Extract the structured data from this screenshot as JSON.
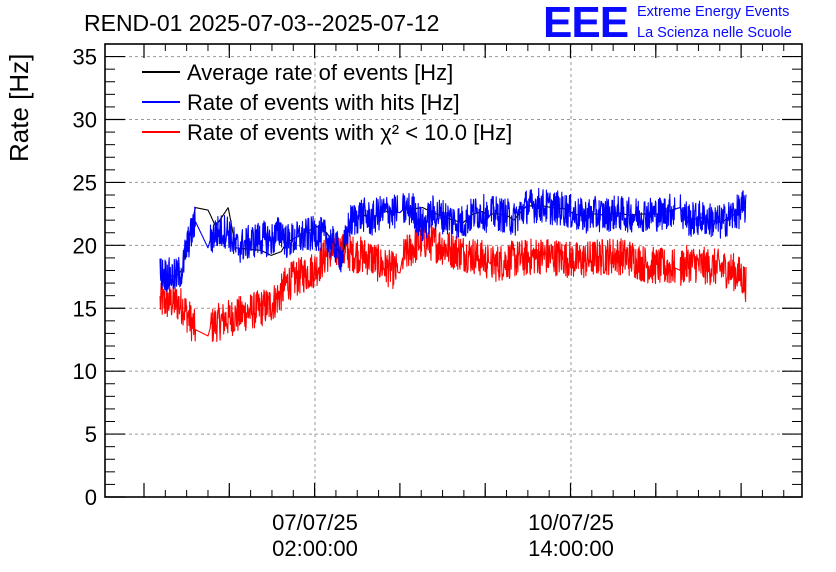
{
  "chart_data": {
    "type": "line",
    "title": "REND-01 2025-07-03--2025-07-12",
    "ylabel": "Rate [Hz]",
    "xlabel": "",
    "ylim": [
      0,
      36
    ],
    "grid": true,
    "legend_position": "top-left",
    "yticks": [
      "0",
      "5",
      "10",
      "15",
      "20",
      "25",
      "30",
      "35"
    ],
    "xtick_labels": [
      {
        "date": "07/07/25",
        "time": "02:00:00"
      },
      {
        "date": "10/07/25",
        "time": "14:00:00"
      }
    ],
    "x_hours": [
      0,
      6,
      8.5,
      9,
      10,
      14,
      19,
      20,
      22,
      27,
      30,
      40,
      44,
      48,
      50,
      62,
      66,
      70,
      72,
      75,
      80,
      84,
      86,
      90,
      95,
      96,
      100,
      104,
      108,
      112,
      116,
      120,
      124,
      128,
      130,
      131,
      134,
      138,
      140,
      145,
      150,
      155,
      160,
      164,
      168,
      172,
      176,
      180,
      186,
      192,
      198,
      204,
      206,
      207,
      210,
      214,
      218,
      222,
      226,
      230,
      231,
      232
    ],
    "series": [
      {
        "name": "Average rate of events [Hz]",
        "color": "#000000",
        "values": [
          17.8,
          17.5,
          18.0,
          18.0,
          19.5,
          23.0,
          22.8,
          22.4,
          21.5,
          23.0,
          19.8,
          19.6,
          19.2,
          19.5,
          20.2,
          21.5,
          21.0,
          19.8,
          19.0,
          21.8,
          22.5,
          22.0,
          22.5,
          22.7,
          22.6,
          22.8,
          22.9,
          23.0,
          22.6,
          22.3,
          22.0,
          21.8,
          22.5,
          22.7,
          22.2,
          22.5,
          22.5,
          22.3,
          22.0,
          23.1,
          23.2,
          23.0,
          22.9,
          22.5,
          22.3,
          22.5,
          22.4,
          22.6,
          22.4,
          22.5,
          22.5,
          22.9,
          23.0,
          22.5,
          22.0,
          22.2,
          22.0,
          21.8,
          22.3,
          22.8,
          23.1,
          23.0
        ]
      },
      {
        "name": "Rate of events with hits [Hz]",
        "color": "#0000ff",
        "values": [
          17.8,
          17.5,
          18.0,
          18.0,
          19.5,
          21.9,
          19.8,
          20.5,
          21.0,
          21.2,
          19.8,
          20.6,
          20.4,
          21.2,
          20.3,
          21.0,
          20.6,
          19.8,
          19.0,
          21.8,
          22.5,
          22.0,
          22.5,
          22.7,
          22.6,
          22.8,
          22.9,
          21.5,
          22.6,
          22.3,
          22.0,
          21.8,
          22.5,
          22.7,
          22.2,
          22.5,
          22.5,
          22.3,
          22.0,
          23.1,
          23.2,
          23.0,
          22.9,
          22.5,
          22.3,
          22.5,
          22.4,
          22.6,
          22.4,
          22.5,
          22.5,
          22.9,
          23.0,
          22.5,
          22.0,
          22.2,
          22.0,
          21.8,
          22.3,
          22.8,
          23.1,
          23.0
        ]
      },
      {
        "name": "Rate of events with χ² < 10.0 [Hz]",
        "color": "#ff0000",
        "values": [
          15.5,
          15.5,
          15.2,
          15.2,
          14.8,
          13.3,
          12.8,
          13.5,
          13.8,
          14.2,
          14.4,
          15.0,
          15.3,
          16.2,
          17.0,
          18.2,
          19.3,
          19.6,
          19.5,
          19.4,
          19.2,
          19.0,
          18.6,
          18.2,
          17.8,
          19.0,
          19.8,
          20.4,
          20.2,
          19.9,
          19.6,
          19.4,
          19.2,
          18.9,
          18.7,
          18.5,
          18.6,
          18.8,
          18.9,
          19.0,
          19.2,
          19.1,
          19.0,
          18.8,
          18.8,
          19.0,
          19.1,
          19.2,
          19.0,
          18.5,
          18.3,
          18.2,
          18.0,
          18.4,
          18.6,
          18.4,
          18.3,
          18.2,
          18.0,
          17.6,
          17.2,
          17.0
        ]
      }
    ]
  },
  "logo": {
    "text": "EEE",
    "line1": "Extreme Energy Events",
    "line2": "La Scienza nelle Scuole"
  }
}
